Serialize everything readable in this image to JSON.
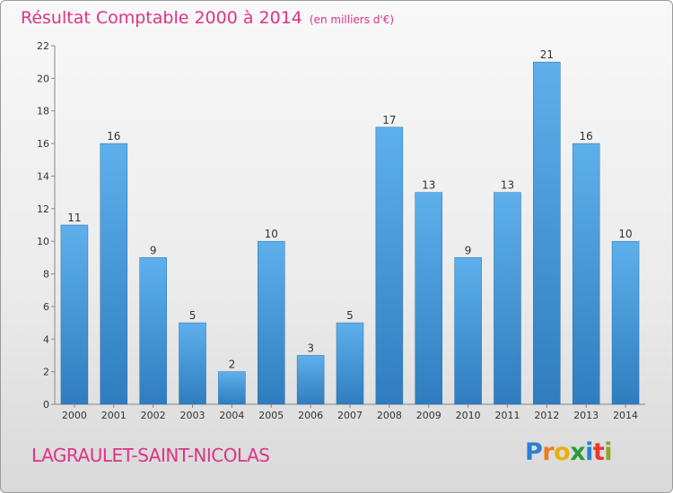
{
  "header": {
    "title": "Résultat Comptable 2000 à 2014",
    "subtitle": "(en milliers d'€)"
  },
  "footer": {
    "commune": "LAGRAULET-SAINT-NICOLAS",
    "logo_text": "Proxiti",
    "logo_colors": [
      "#2b7fd0",
      "#f07a1a",
      "#e8b010",
      "#2b9b3a",
      "#2b7fd0",
      "#e83a2a",
      "#8aa820"
    ]
  },
  "colors": {
    "title": "#dd3388",
    "bar_light": "#5eb0ec",
    "bar_dark": "#2f7dbf"
  },
  "chart_data": {
    "type": "bar",
    "categories": [
      "2000",
      "2001",
      "2002",
      "2003",
      "2004",
      "2005",
      "2006",
      "2007",
      "2008",
      "2009",
      "2010",
      "2011",
      "2012",
      "2013",
      "2014"
    ],
    "values": [
      11,
      16,
      9,
      5,
      2,
      10,
      3,
      5,
      17,
      13,
      9,
      13,
      21,
      16,
      10
    ],
    "title": "Résultat Comptable 2000 à 2014",
    "xlabel": "",
    "ylabel": "",
    "ylim": [
      0,
      22
    ],
    "yticks": [
      0,
      2,
      4,
      6,
      8,
      10,
      12,
      14,
      16,
      18,
      20,
      22
    ],
    "grid": false
  }
}
